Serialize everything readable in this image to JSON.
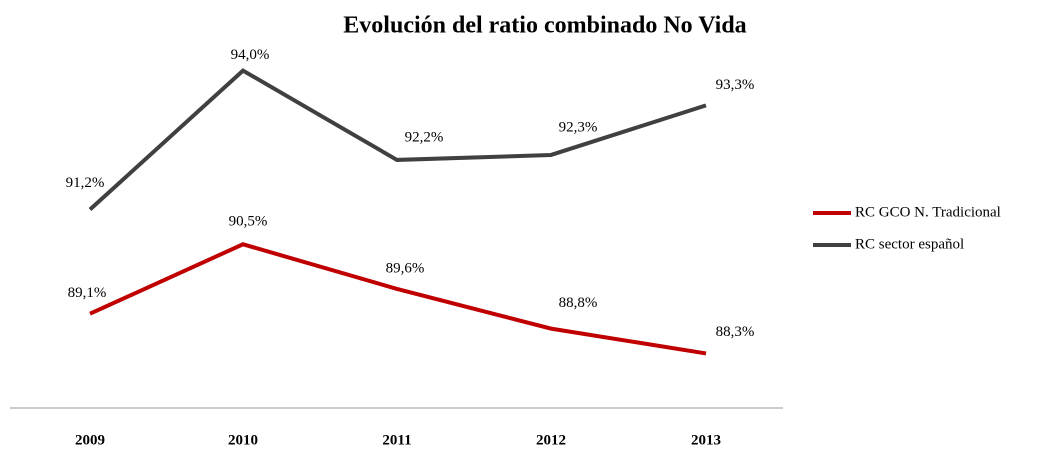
{
  "chart_data": {
    "type": "line",
    "title": "Evolución del ratio combinado No Vida",
    "categories": [
      "2009",
      "2010",
      "2011",
      "2012",
      "2013"
    ],
    "series": [
      {
        "name": "RC GCO N. Tradicional",
        "color": "#c00000",
        "values": [
          89.1,
          90.5,
          89.6,
          88.8,
          88.3
        ],
        "value_labels": [
          "89,1%",
          "90,5%",
          "89,6%",
          "88,8%",
          "88,3%"
        ]
      },
      {
        "name": "RC sector español",
        "color": "#404040",
        "values": [
          91.2,
          94.0,
          92.2,
          92.3,
          93.3
        ],
        "value_labels": [
          "91,2%",
          "94,0%",
          "92,2%",
          "92,3%",
          "93,3%"
        ]
      }
    ],
    "ylim": [
      87.2,
      95
    ],
    "legend": "right"
  }
}
